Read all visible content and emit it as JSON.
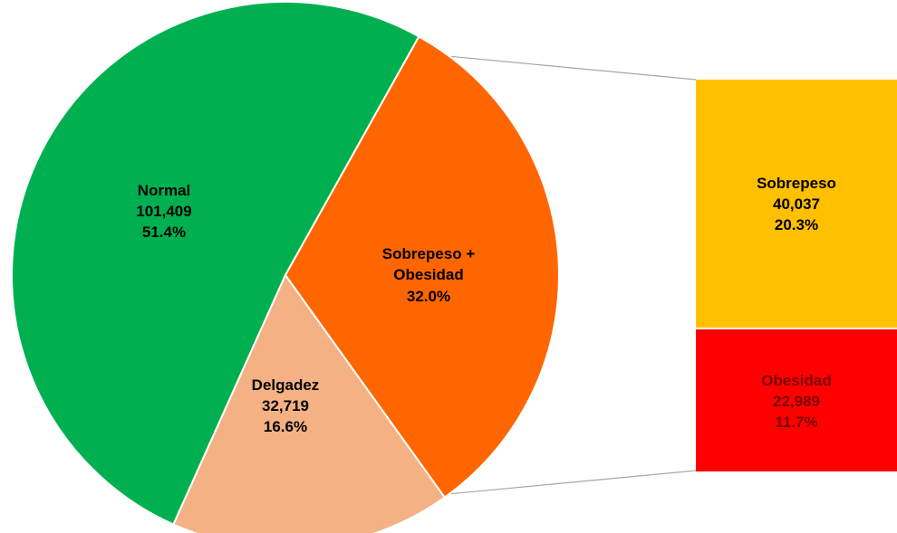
{
  "chart_data": {
    "type": "pie",
    "title": "",
    "pie": {
      "slices": [
        {
          "key": "normal",
          "name": "Normal",
          "count": "101,409",
          "percent": "51.4%",
          "value": 51.4,
          "color": "#00b050"
        },
        {
          "key": "delgadez",
          "name": "Delgadez",
          "count": "32,719",
          "percent": "16.6%",
          "value": 16.6,
          "color": "#f4b183"
        },
        {
          "key": "sobrepeso_obesidad",
          "name_line1": "Sobrepeso +",
          "name_line2": "Obesidad",
          "percent": "32.0%",
          "value": 32.0,
          "color": "#ff6600"
        }
      ]
    },
    "breakdown": {
      "of": "Sobrepeso + Obesidad",
      "items": [
        {
          "key": "sobrepeso",
          "name": "Sobrepeso",
          "count": "40,037",
          "percent": "20.3%",
          "value": 20.3,
          "color": "#ffc000"
        },
        {
          "key": "obesidad",
          "name": "Obesidad",
          "count": "22,989",
          "percent": "11.7%",
          "value": 11.7,
          "color": "#ff0000"
        }
      ]
    }
  }
}
